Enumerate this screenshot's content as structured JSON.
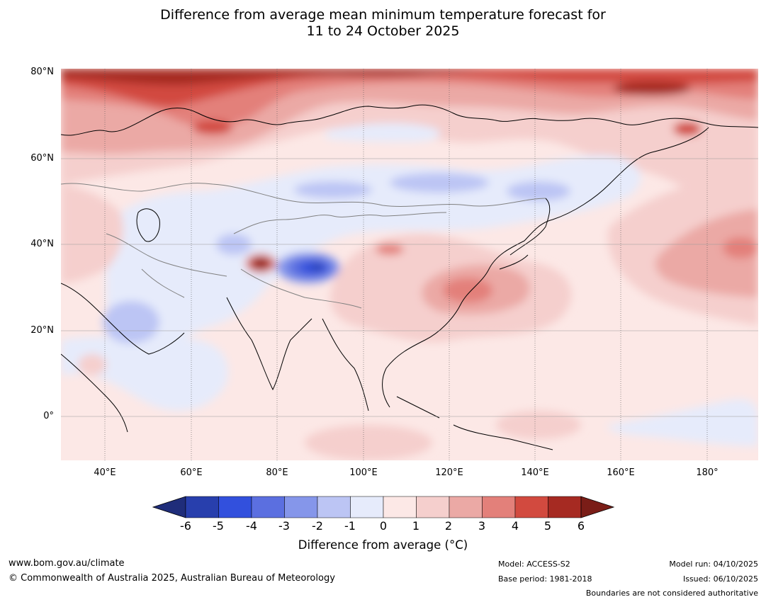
{
  "title": {
    "line1": "Difference from average mean minimum temperature forecast for",
    "line2": "11 to 24 October 2025"
  },
  "map": {
    "lat_labels": [
      "80°N",
      "60°N",
      "40°N",
      "20°N",
      "0°"
    ],
    "lon_labels": [
      "40°E",
      "60°E",
      "80°E",
      "100°E",
      "120°E",
      "140°E",
      "160°E",
      "180°"
    ],
    "extent": {
      "lon_min": 30,
      "lon_max": 191,
      "lat_min": -10,
      "lat_max": 81
    }
  },
  "legend": {
    "ticks": [
      "-6",
      "-5",
      "-4",
      "-3",
      "-2",
      "-1",
      "0",
      "1",
      "2",
      "3",
      "4",
      "5",
      "6"
    ],
    "colors": [
      "#1f2d7a",
      "#283fad",
      "#3250dd",
      "#5b6fe0",
      "#8596ea",
      "#bcc5f4",
      "#e6ebfb",
      "#fce8e6",
      "#f5cfcd",
      "#eba9a5",
      "#e3807a",
      "#d24a3f",
      "#a62a22",
      "#7a1d17"
    ],
    "label": "Difference from average (°C)"
  },
  "footer": {
    "website": "www.bom.gov.au/climate",
    "copyright": "© Commonwealth of Australia 2025, Australian Bureau of Meteorology",
    "model": "Model: ACCESS-S2",
    "base_period": "Base period: 1981-2018",
    "model_run": "Model run: 04/10/2025",
    "issued": "Issued: 06/10/2025",
    "disclaimer": "Boundaries are not considered authoritative"
  }
}
